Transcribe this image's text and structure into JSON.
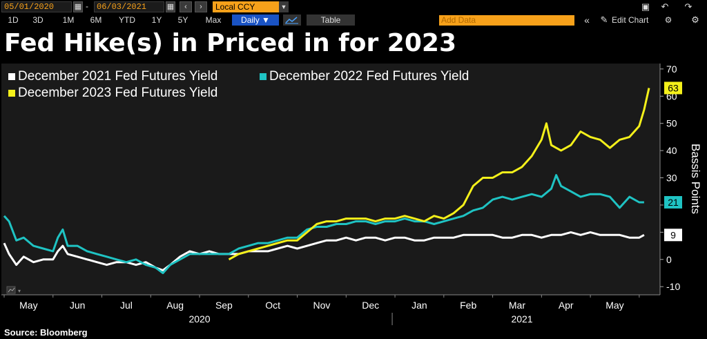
{
  "toolbar": {
    "start_date": "05/01/2020",
    "dash": "-",
    "end_date": "06/03/2021",
    "currency": "Local CCY",
    "periods": [
      "1D",
      "3D",
      "1M",
      "6M",
      "YTD",
      "1Y",
      "5Y",
      "Max"
    ],
    "frequency": "Daily ▼",
    "table_label": "Table",
    "add_data_placeholder": "Add Data",
    "edit_chart_label": "Edit Chart"
  },
  "icons": {
    "calendar": "calendar-icon",
    "prev": "chevron-left-icon",
    "next": "chevron-right-icon",
    "collapse": "double-chevron-left-icon",
    "edit": "pencil-icon",
    "settings": "gear-icon",
    "undo": "undo-icon",
    "redo": "redo-icon",
    "window": "window-icon",
    "line_chart": "line-chart-icon"
  },
  "colors": {
    "background": "#000000",
    "plot_background": "#1a1a1a",
    "accent": "#f7a11a",
    "series_2021": "#ffffff",
    "series_2022": "#1fc3c3",
    "series_2023": "#f4f01a"
  },
  "title": "Fed Hike(s) in Priced in for 2023",
  "source": "Source: Bloomberg",
  "chart_data": {
    "type": "line",
    "title": "Fed Hike(s) in Priced in for 2023",
    "ylabel": "Bassis Points",
    "ylim": [
      -13,
      72
    ],
    "yticks": [
      -10,
      0,
      10,
      20,
      30,
      40,
      50,
      60,
      70
    ],
    "ytick_labels": [
      "-10",
      "0",
      "10",
      "20",
      "30",
      "40",
      "50",
      "60",
      "70"
    ],
    "y_axis_side": "right",
    "xlim": [
      0,
      13.2
    ],
    "x_month_labels": [
      {
        "label": "May",
        "x": 0.5
      },
      {
        "label": "Jun",
        "x": 1.5
      },
      {
        "label": "Jul",
        "x": 2.5
      },
      {
        "label": "Aug",
        "x": 3.5
      },
      {
        "label": "Sep",
        "x": 4.5
      },
      {
        "label": "Oct",
        "x": 5.5
      },
      {
        "label": "Nov",
        "x": 6.5
      },
      {
        "label": "Dec",
        "x": 7.5
      },
      {
        "label": "Jan",
        "x": 8.5
      },
      {
        "label": "Feb",
        "x": 9.5
      },
      {
        "label": "Mar",
        "x": 10.5
      },
      {
        "label": "Apr",
        "x": 11.5
      },
      {
        "label": "May",
        "x": 12.5
      }
    ],
    "x_year_labels": [
      {
        "label": "2020",
        "x": 4
      },
      {
        "label": "2021",
        "x": 10.6
      }
    ],
    "year_divider_x": 8,
    "grid": false,
    "legend_position": "top-left",
    "series": [
      {
        "name": "December 2021 Fed Futures Yield",
        "color": "#ffffff",
        "last_value": "9",
        "points": [
          [
            0,
            6
          ],
          [
            0.1,
            2
          ],
          [
            0.25,
            -2
          ],
          [
            0.4,
            1
          ],
          [
            0.6,
            -1
          ],
          [
            0.8,
            0
          ],
          [
            1.0,
            0
          ],
          [
            1.1,
            3
          ],
          [
            1.2,
            5
          ],
          [
            1.3,
            2
          ],
          [
            1.5,
            1
          ],
          [
            1.7,
            0
          ],
          [
            1.9,
            -1
          ],
          [
            2.1,
            -2
          ],
          [
            2.3,
            -1
          ],
          [
            2.5,
            -1
          ],
          [
            2.7,
            -2
          ],
          [
            2.9,
            -1
          ],
          [
            3.1,
            -3
          ],
          [
            3.25,
            -4
          ],
          [
            3.4,
            -2
          ],
          [
            3.6,
            1
          ],
          [
            3.8,
            3
          ],
          [
            4.0,
            2
          ],
          [
            4.2,
            3
          ],
          [
            4.4,
            2
          ],
          [
            4.6,
            2
          ],
          [
            4.8,
            2
          ],
          [
            5.0,
            3
          ],
          [
            5.2,
            3
          ],
          [
            5.4,
            3
          ],
          [
            5.6,
            4
          ],
          [
            5.8,
            5
          ],
          [
            6.0,
            4
          ],
          [
            6.2,
            5
          ],
          [
            6.4,
            6
          ],
          [
            6.6,
            7
          ],
          [
            6.8,
            7
          ],
          [
            7.0,
            8
          ],
          [
            7.2,
            7
          ],
          [
            7.4,
            8
          ],
          [
            7.6,
            8
          ],
          [
            7.8,
            7
          ],
          [
            8.0,
            8
          ],
          [
            8.2,
            8
          ],
          [
            8.4,
            7
          ],
          [
            8.6,
            7
          ],
          [
            8.8,
            8
          ],
          [
            9.0,
            8
          ],
          [
            9.2,
            8
          ],
          [
            9.4,
            9
          ],
          [
            9.6,
            9
          ],
          [
            9.8,
            9
          ],
          [
            10.0,
            9
          ],
          [
            10.2,
            8
          ],
          [
            10.4,
            8
          ],
          [
            10.6,
            9
          ],
          [
            10.8,
            9
          ],
          [
            11.0,
            8
          ],
          [
            11.2,
            9
          ],
          [
            11.4,
            9
          ],
          [
            11.6,
            10
          ],
          [
            11.8,
            9
          ],
          [
            12.0,
            10
          ],
          [
            12.2,
            9
          ],
          [
            12.4,
            9
          ],
          [
            12.6,
            9
          ],
          [
            12.8,
            8
          ],
          [
            13.0,
            8
          ],
          [
            13.1,
            9
          ]
        ]
      },
      {
        "name": "December 2022 Fed Futures Yield",
        "color": "#1fc3c3",
        "last_value": "21",
        "points": [
          [
            0,
            16
          ],
          [
            0.1,
            14
          ],
          [
            0.25,
            7
          ],
          [
            0.4,
            8
          ],
          [
            0.6,
            5
          ],
          [
            0.8,
            4
          ],
          [
            1.0,
            3
          ],
          [
            1.1,
            8
          ],
          [
            1.2,
            11
          ],
          [
            1.3,
            5
          ],
          [
            1.5,
            5
          ],
          [
            1.7,
            3
          ],
          [
            1.9,
            2
          ],
          [
            2.1,
            1
          ],
          [
            2.3,
            0
          ],
          [
            2.5,
            -1
          ],
          [
            2.7,
            0
          ],
          [
            2.9,
            -2
          ],
          [
            3.1,
            -3
          ],
          [
            3.25,
            -5
          ],
          [
            3.4,
            -2
          ],
          [
            3.6,
            0
          ],
          [
            3.8,
            2
          ],
          [
            4.0,
            2
          ],
          [
            4.2,
            2
          ],
          [
            4.4,
            2
          ],
          [
            4.6,
            2
          ],
          [
            4.8,
            4
          ],
          [
            5.0,
            5
          ],
          [
            5.2,
            6
          ],
          [
            5.4,
            6
          ],
          [
            5.6,
            7
          ],
          [
            5.8,
            8
          ],
          [
            6.0,
            8
          ],
          [
            6.2,
            11
          ],
          [
            6.4,
            12
          ],
          [
            6.6,
            12
          ],
          [
            6.8,
            13
          ],
          [
            7.0,
            13
          ],
          [
            7.2,
            14
          ],
          [
            7.4,
            14
          ],
          [
            7.6,
            13
          ],
          [
            7.8,
            14
          ],
          [
            8.0,
            14
          ],
          [
            8.2,
            15
          ],
          [
            8.4,
            14
          ],
          [
            8.6,
            14
          ],
          [
            8.8,
            13
          ],
          [
            9.0,
            14
          ],
          [
            9.2,
            15
          ],
          [
            9.4,
            16
          ],
          [
            9.6,
            18
          ],
          [
            9.8,
            19
          ],
          [
            10.0,
            22
          ],
          [
            10.2,
            23
          ],
          [
            10.4,
            22
          ],
          [
            10.6,
            23
          ],
          [
            10.8,
            24
          ],
          [
            11.0,
            23
          ],
          [
            11.2,
            26
          ],
          [
            11.3,
            31
          ],
          [
            11.4,
            27
          ],
          [
            11.6,
            25
          ],
          [
            11.8,
            23
          ],
          [
            12.0,
            24
          ],
          [
            12.2,
            24
          ],
          [
            12.4,
            23
          ],
          [
            12.6,
            19
          ],
          [
            12.8,
            23
          ],
          [
            13.0,
            21
          ],
          [
            13.1,
            21
          ]
        ]
      },
      {
        "name": "December 2023 Fed Futures Yield",
        "color": "#f4f01a",
        "last_value": "63",
        "points": [
          [
            4.6,
            0
          ],
          [
            4.8,
            2
          ],
          [
            5.0,
            3
          ],
          [
            5.2,
            4
          ],
          [
            5.4,
            5
          ],
          [
            5.6,
            6
          ],
          [
            5.8,
            7
          ],
          [
            6.0,
            7
          ],
          [
            6.2,
            10
          ],
          [
            6.4,
            13
          ],
          [
            6.6,
            14
          ],
          [
            6.8,
            14
          ],
          [
            7.0,
            15
          ],
          [
            7.2,
            15
          ],
          [
            7.4,
            15
          ],
          [
            7.6,
            14
          ],
          [
            7.8,
            15
          ],
          [
            8.0,
            15
          ],
          [
            8.2,
            16
          ],
          [
            8.4,
            15
          ],
          [
            8.6,
            14
          ],
          [
            8.8,
            16
          ],
          [
            9.0,
            15
          ],
          [
            9.2,
            17
          ],
          [
            9.4,
            20
          ],
          [
            9.6,
            27
          ],
          [
            9.8,
            30
          ],
          [
            10.0,
            30
          ],
          [
            10.2,
            32
          ],
          [
            10.4,
            32
          ],
          [
            10.6,
            34
          ],
          [
            10.8,
            38
          ],
          [
            11.0,
            44
          ],
          [
            11.1,
            50
          ],
          [
            11.2,
            42
          ],
          [
            11.4,
            40
          ],
          [
            11.6,
            42
          ],
          [
            11.8,
            47
          ],
          [
            12.0,
            45
          ],
          [
            12.2,
            44
          ],
          [
            12.4,
            41
          ],
          [
            12.6,
            44
          ],
          [
            12.8,
            45
          ],
          [
            13.0,
            49
          ],
          [
            13.1,
            55
          ],
          [
            13.2,
            63
          ]
        ]
      }
    ]
  }
}
